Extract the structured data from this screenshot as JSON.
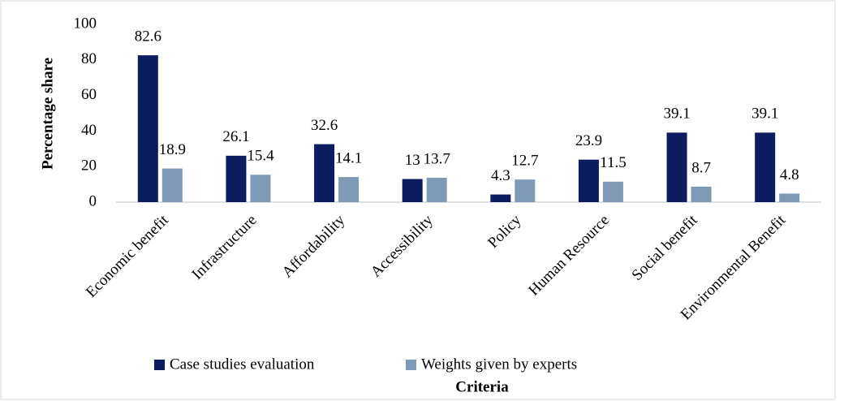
{
  "chart_data": {
    "type": "bar",
    "x_label": "Criteria",
    "y_label": "Percentage share",
    "categories": [
      "Economic benefit",
      "Infrastructure",
      "Affordability",
      "Accessibility",
      "Policy",
      "Human Resource",
      "Social benefit",
      "Environmental Benefit"
    ],
    "series": [
      {
        "name": "Case studies evaluation",
        "color": "#0c1c5f",
        "values": [
          82.6,
          26.1,
          32.6,
          13,
          4.3,
          23.9,
          39.1,
          39.1
        ]
      },
      {
        "name": "Weights given by experts",
        "color": "#7f9ab6",
        "values": [
          18.9,
          15.4,
          14.1,
          13.7,
          12.7,
          11.5,
          8.7,
          4.8
        ]
      }
    ],
    "ylim": [
      0,
      100
    ],
    "yticks": [
      0,
      20,
      40,
      60,
      80,
      100
    ],
    "grid": false,
    "legend": "bottom"
  }
}
